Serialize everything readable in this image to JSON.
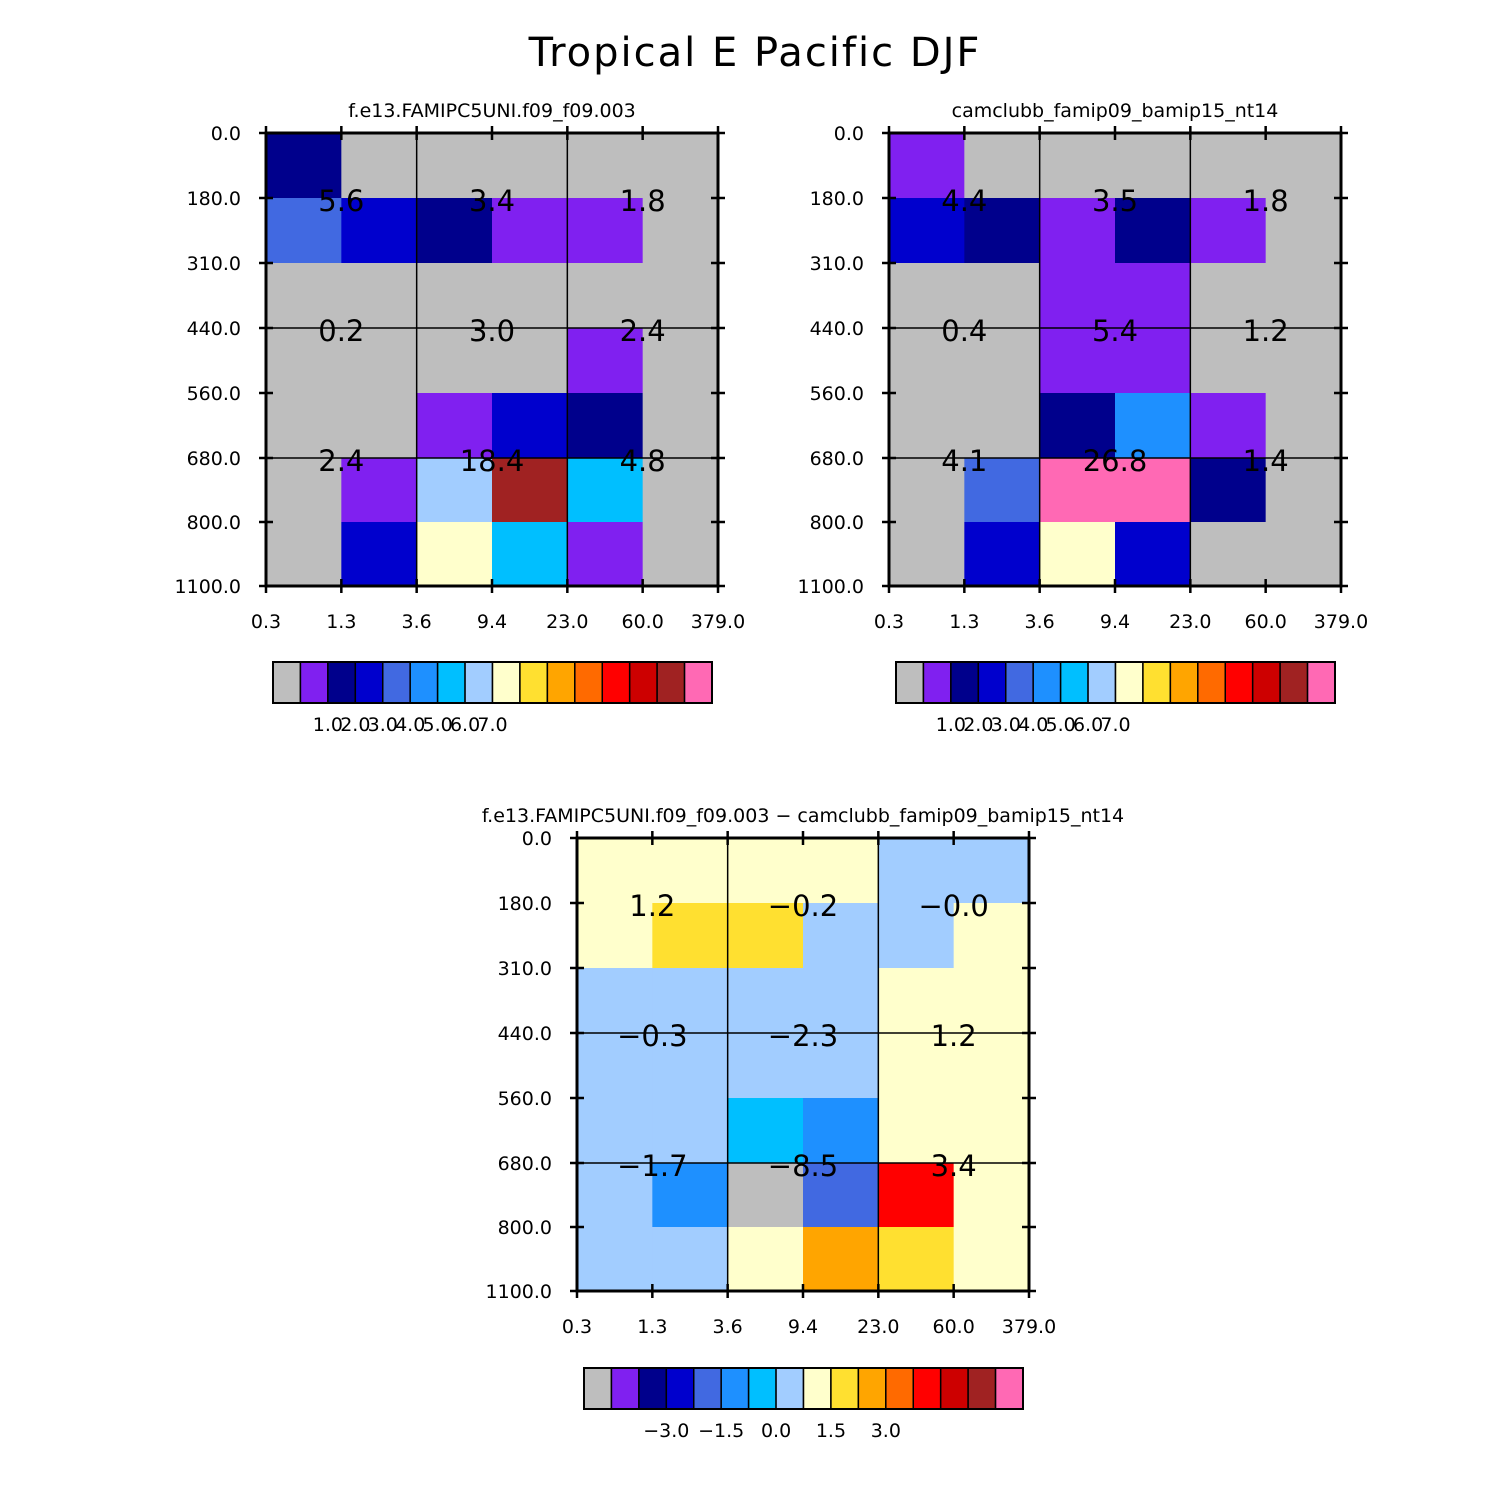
{
  "title": "Tropical E Pacific DJF",
  "x_tick_labels": [
    "0.3",
    "1.3",
    "3.6",
    "9.4",
    "23.0",
    "60.0",
    "379.0"
  ],
  "y_tick_labels": [
    "0.0",
    "180.0",
    "310.0",
    "440.0",
    "560.0",
    "680.0",
    "800.0",
    "1100.0"
  ],
  "palette": {
    "C": "#bebebe",
    "P": "#8020f0",
    "N": "#00008c",
    "B": "#0000cd",
    "R": "#4169e1",
    "D": "#1e90ff",
    "S": "#00bfff",
    "L": "#a2cdff",
    "W": "#ffffcc",
    "G": "#ffe030",
    "O": "#ffa500",
    "K": "#ff6a00",
    "E": "#ff0000",
    "F": "#cd0000",
    "M": "#a02222",
    "H": "#ff69b4"
  },
  "colorbar_order": [
    "C",
    "P",
    "N",
    "B",
    "R",
    "D",
    "S",
    "L",
    "W",
    "G",
    "O",
    "K",
    "E",
    "F",
    "M",
    "H"
  ],
  "chart_data": [
    {
      "type": "heatmap",
      "title": "f.e13.FAMIPC5UNI.f09_f09.003",
      "grid": [
        [
          "N",
          "C",
          "C",
          "C",
          "C",
          "C"
        ],
        [
          "R",
          "B",
          "N",
          "P",
          "P",
          "C"
        ],
        [
          "C",
          "C",
          "C",
          "C",
          "C",
          "C"
        ],
        [
          "C",
          "C",
          "C",
          "C",
          "P",
          "C"
        ],
        [
          "C",
          "C",
          "P",
          "B",
          "N",
          "C"
        ],
        [
          "C",
          "P",
          "L",
          "M",
          "S",
          "C"
        ],
        [
          "C",
          "B",
          "W",
          "S",
          "P",
          "C"
        ]
      ],
      "cell_labels": [
        [
          "5.6",
          "3.4",
          "1.8"
        ],
        [
          "0.2",
          "3.0",
          "2.4"
        ],
        [
          "2.4",
          "18.4",
          "4.8"
        ]
      ],
      "colorbar_labels": [
        "1.0",
        "2.0",
        "3.0",
        "4.0",
        "5.0",
        "6.0",
        "7.0"
      ]
    },
    {
      "type": "heatmap",
      "title": "camclubb_famip09_bamip15_nt14",
      "grid": [
        [
          "P",
          "C",
          "C",
          "C",
          "C",
          "C"
        ],
        [
          "B",
          "N",
          "P",
          "N",
          "P",
          "C"
        ],
        [
          "C",
          "C",
          "P",
          "P",
          "C",
          "C"
        ],
        [
          "C",
          "C",
          "P",
          "P",
          "C",
          "C"
        ],
        [
          "C",
          "C",
          "N",
          "D",
          "P",
          "C"
        ],
        [
          "C",
          "R",
          "H",
          "H",
          "N",
          "C"
        ],
        [
          "C",
          "B",
          "W",
          "B",
          "C",
          "C"
        ]
      ],
      "cell_labels": [
        [
          "4.4",
          "3.5",
          "1.8"
        ],
        [
          "0.4",
          "5.4",
          "1.2"
        ],
        [
          "4.1",
          "26.8",
          "1.4"
        ]
      ],
      "colorbar_labels": [
        "1.0",
        "2.0",
        "3.0",
        "4.0",
        "5.0",
        "6.0",
        "7.0"
      ]
    },
    {
      "type": "heatmap",
      "title": "f.e13.FAMIPC5UNI.f09_f09.003 − camclubb_famip09_bamip15_nt14",
      "grid": [
        [
          "W",
          "W",
          "W",
          "W",
          "L",
          "L"
        ],
        [
          "W",
          "G",
          "G",
          "L",
          "L",
          "W"
        ],
        [
          "L",
          "L",
          "L",
          "L",
          "W",
          "W"
        ],
        [
          "L",
          "L",
          "L",
          "L",
          "W",
          "W"
        ],
        [
          "L",
          "L",
          "S",
          "D",
          "W",
          "W"
        ],
        [
          "L",
          "D",
          "C",
          "R",
          "E",
          "W"
        ],
        [
          "L",
          "L",
          "W",
          "O",
          "G",
          "W"
        ]
      ],
      "cell_labels": [
        [
          "1.2",
          "−0.2",
          "−0.0"
        ],
        [
          "−0.3",
          "−2.3",
          "1.2"
        ],
        [
          "−1.7",
          "−8.5",
          "3.4"
        ]
      ],
      "colorbar_labels": [
        "−3.0",
        "−1.5",
        "0.0",
        "1.5",
        "3.0"
      ]
    }
  ]
}
